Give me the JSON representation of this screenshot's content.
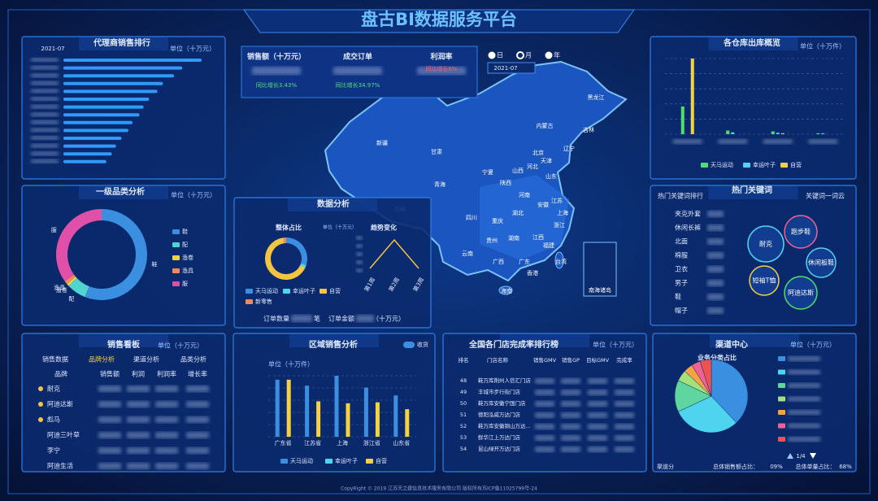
{
  "header": {
    "title": "盘古BI数据服务平台"
  },
  "kpi": {
    "items": [
      {
        "label": "销售额（十万元）",
        "growth": "同比增长3.43%"
      },
      {
        "label": "成交订单",
        "growth": "同比增长34.97%"
      },
      {
        "label": "利润率",
        "growth": "同比增长6%"
      }
    ],
    "periods": [
      "日",
      "月",
      "年"
    ],
    "active_period": 1,
    "date": "2021-07"
  },
  "map": {
    "labels": [
      "黑龙江",
      "吉林",
      "内蒙古",
      "辽宁",
      "北京",
      "天津",
      "河北",
      "山西",
      "宁夏",
      "甘肃",
      "新疆",
      "西藏",
      "青海",
      "陕西",
      "河南",
      "山东",
      "江苏",
      "安徽",
      "上海",
      "湖北",
      "四川",
      "重庆",
      "浙江",
      "湖南",
      "江西",
      "贵州",
      "福建",
      "云南",
      "广西",
      "广东",
      "台湾",
      "香港",
      "海南",
      "南海诸岛"
    ]
  },
  "data_analysis": {
    "title": "数据分析",
    "order_count": "订单数量",
    "order_unit": "笔",
    "order_amount": "订单金额",
    "amount_unit": "（十万元）"
  },
  "sales_board": {
    "title": "销售看板",
    "unit": "单位（十万元）",
    "tabs": [
      "销售数据",
      "品牌分析",
      "渠道分析",
      "品类分析"
    ],
    "active_tab": 1,
    "columns": [
      "品牌",
      "销售额",
      "利润",
      "利润率",
      "增长率"
    ],
    "brands": [
      "耐克",
      "阿迪达斯",
      "彪马",
      "阿迪三叶草",
      "李宁",
      "阿迪生活"
    ]
  },
  "keywords": {
    "tab_rank": "热门关键词排行",
    "title": "热门关键词",
    "tab_cloud": "关键词一词云",
    "words": [
      "夹克外套",
      "休闲长裤",
      "北面",
      "棉服",
      "卫衣",
      "男子",
      "鞋",
      "帽子"
    ],
    "cloud": [
      {
        "word": "耐克",
        "color": "#4fd4f0"
      },
      {
        "word": "跑步鞋",
        "color": "#f06292"
      },
      {
        "word": "休闲板鞋",
        "color": "#4fd4f0"
      },
      {
        "word": "短袖T恤",
        "color": "#f5d142"
      },
      {
        "word": "阿迪达斯",
        "color": "#4ee06a"
      }
    ]
  },
  "store_rank": {
    "title": "全国各门店完成率排行榜",
    "unit": "单位（十万元）",
    "columns": [
      "排名",
      "门店名称",
      "销售GMV",
      "销售GP",
      "目标GMV",
      "完成率"
    ],
    "rows": [
      [
        48,
        "鞋万库荆州人信汇门店"
      ],
      [
        49,
        "丰城市步行街门店"
      ],
      [
        50,
        "鞋万库安徽宁国门店"
      ],
      [
        51,
        "德阳泓威万达门店"
      ],
      [
        52,
        "鞋万库安徽铜山万达..."
      ],
      [
        53,
        "鲜华江上万达门店"
      ],
      [
        54,
        "昆山绿开万达门店"
      ]
    ]
  },
  "channel": {
    "title": "渠道中心",
    "unit": "单位（十万元）",
    "page": "1/4",
    "footer": [
      "渠道分",
      "总体销售额占比：",
      "09%",
      "总体单量占比：",
      "68%"
    ]
  },
  "footer": "CopyRight © 2019 江苏天之建信息技术服务有限公司 版权所有苏ICP备11025799号-24",
  "chart_data": [
    {
      "type": "hbar",
      "title": "代理商销售排行",
      "subtitle": "2021-07",
      "unit": "单位（十万元）",
      "categories": [
        null,
        null,
        null,
        null,
        null,
        null,
        null,
        null,
        null,
        null,
        null,
        null,
        null,
        null
      ],
      "values": [
        100,
        86,
        80,
        72,
        68,
        62,
        58,
        55,
        50,
        47,
        42,
        38,
        35,
        31
      ],
      "color": "#2f9bff"
    },
    {
      "type": "donut",
      "title": "一级品类分析",
      "unit": "单位（十万元）",
      "categories": [
        "鞋",
        "配",
        "渔卷",
        "渔具",
        "服"
      ],
      "values": [
        56,
        7,
        0.8,
        1.2,
        35
      ],
      "colors": [
        "#3a8fe0",
        "#4fd4d0",
        "#f5d142",
        "#f08a5d",
        "#e04fa8"
      ]
    },
    {
      "type": "donut",
      "title": "整体占比",
      "unit": "单位（十万元）",
      "categories": [
        "天马运动",
        "幸运叶子",
        "自营",
        "新零售"
      ],
      "values": [
        30,
        2,
        66,
        2
      ],
      "colors": [
        "#3a8fe0",
        "#4fd4f0",
        "#f5c542",
        "#f08a5d"
      ]
    },
    {
      "type": "line",
      "title": "趋势变化",
      "categories": [
        "第1周",
        "第2周",
        "第3周"
      ],
      "values": [
        2,
        9,
        2
      ],
      "color": "#f5c542"
    },
    {
      "type": "bar",
      "title": "各仓库出库概览",
      "unit": "单位（十万件）",
      "categories": [
        null,
        null,
        null,
        null
      ],
      "series": [
        {
          "name": "天马运动",
          "color": "#4ee06a",
          "values": [
            30,
            4,
            3,
            1
          ]
        },
        {
          "name": "幸运叶子",
          "color": "#4fd4f0",
          "values": [
            0,
            2,
            1.5,
            1
          ]
        },
        {
          "name": "自营",
          "color": "#f5d142",
          "values": [
            82,
            0,
            1,
            0
          ]
        }
      ]
    },
    {
      "type": "bar",
      "title": "区域销售分析",
      "unit": "单位（十万件）",
      "toggle": "收货",
      "categories": [
        "广东省",
        "江苏省",
        "上海",
        "浙江省",
        "山东省"
      ],
      "series": [
        {
          "name": "天马运动",
          "color": "#3a8fe0",
          "values": [
            58,
            52,
            62,
            50,
            42
          ]
        },
        {
          "name": "幸运叶子",
          "color": "#4fd4f0",
          "values": [
            null,
            null,
            null,
            null,
            null
          ]
        },
        {
          "name": "自营",
          "color": "#f5d142",
          "values": [
            58,
            36,
            34,
            35,
            28
          ]
        }
      ]
    },
    {
      "type": "pie",
      "title": "业务分类占比",
      "categories": [
        null,
        null,
        null,
        null,
        null,
        null,
        null
      ],
      "values": [
        38,
        30,
        14,
        5,
        4,
        4,
        5
      ],
      "colors": [
        "#3a8fe0",
        "#4fd4f0",
        "#5fd6a0",
        "#a6e07a",
        "#f5a540",
        "#f06292",
        "#ef5350"
      ]
    }
  ]
}
